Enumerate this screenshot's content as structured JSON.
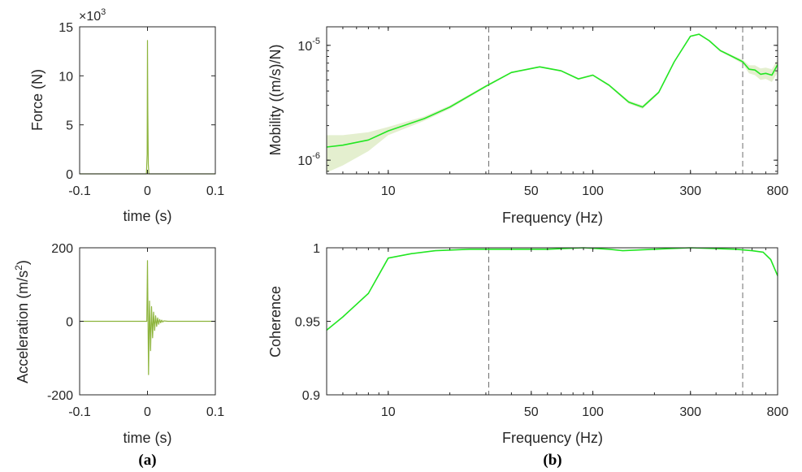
{
  "colors": {
    "force_line": "#8DB43C",
    "accel_line": "#8DB43C",
    "mobility_line": "#22E622",
    "coherence_line": "#22E622",
    "band_fill": "#E4EFCF",
    "marker_line": "#6E6E6E",
    "axis": "#262626"
  },
  "panel_labels": {
    "a": "(a)",
    "b": "(b)"
  },
  "chart_data": [
    {
      "id": "force",
      "type": "line",
      "title": "",
      "xlabel": "time (s)",
      "ylabel": "Force (N)",
      "xlim": [
        -0.1,
        0.1
      ],
      "ylim": [
        0,
        15
      ],
      "xticks": [
        -0.1,
        0,
        0.1
      ],
      "xtick_labels": [
        "-0.1",
        "0",
        "0.1"
      ],
      "yticks": [
        0,
        5,
        10,
        15
      ],
      "ytick_labels": [
        "0",
        "5",
        "10",
        "15"
      ],
      "y_multiplier": "×10",
      "y_multiplier_exp": "3",
      "series": [
        {
          "x": [
            -0.1,
            -0.0015,
            -0.0005,
            0.0,
            0.0005,
            0.0012,
            0.002,
            0.1
          ],
          "y": [
            0,
            0,
            2.0,
            13.6,
            6.5,
            1.0,
            0,
            0
          ]
        }
      ]
    },
    {
      "id": "acceleration",
      "type": "line",
      "title": "",
      "xlabel": "time (s)",
      "ylabel": "Acceleration (m/s",
      "ylabel_sup": "2",
      "ylabel_end": ")",
      "xlim": [
        -0.1,
        0.1
      ],
      "ylim": [
        -200,
        200
      ],
      "xticks": [
        -0.1,
        0,
        0.1
      ],
      "xtick_labels": [
        "-0.1",
        "0",
        "0.1"
      ],
      "yticks": [
        -200,
        0,
        200
      ],
      "ytick_labels": [
        "-200",
        "0",
        "200"
      ],
      "series": [
        {
          "x": [
            -0.1,
            -0.001,
            0.0,
            0.0015,
            0.003,
            0.0045,
            0.006,
            0.0075,
            0.009,
            0.0105,
            0.012,
            0.0135,
            0.015,
            0.0165,
            0.018,
            0.0195,
            0.021,
            0.0225,
            0.024,
            0.03,
            0.1
          ],
          "y": [
            0,
            0,
            165,
            -145,
            55,
            -80,
            40,
            -45,
            25,
            -25,
            15,
            -14,
            9,
            -8,
            5,
            -4,
            3,
            -2,
            1,
            0,
            0
          ]
        }
      ]
    },
    {
      "id": "mobility",
      "type": "line",
      "title": "",
      "xlabel": "Frequency (Hz)",
      "ylabel": "Mobility ((m/s)/N)",
      "xscale": "log",
      "yscale": "log",
      "xlim": [
        5,
        800
      ],
      "ylim": [
        7.6e-07,
        1.45e-05
      ],
      "xticks": [
        10,
        50,
        100,
        300,
        800
      ],
      "xtick_labels": [
        "10",
        "50",
        "100",
        "300",
        "800"
      ],
      "yticks": [
        1e-06,
        1e-05
      ],
      "ytick_base": "10",
      "ytick_exps": [
        "-6",
        "-5"
      ],
      "vlines": [
        31,
        540
      ],
      "series": [
        {
          "x": [
            5,
            6,
            8,
            10,
            15,
            20,
            30,
            40,
            55,
            70,
            85,
            100,
            120,
            150,
            175,
            210,
            250,
            300,
            330,
            370,
            420,
            480,
            540,
            580,
            620,
            660,
            700,
            750,
            800
          ],
          "y": [
            1.3e-06,
            1.35e-06,
            1.5e-06,
            1.8e-06,
            2.3e-06,
            2.9e-06,
            4.4e-06,
            5.8e-06,
            6.5e-06,
            6e-06,
            5.1e-06,
            5.5e-06,
            4.5e-06,
            3.2e-06,
            2.9e-06,
            3.9e-06,
            7.2e-06,
            1.2e-05,
            1.25e-05,
            1.1e-05,
            9e-06,
            8e-06,
            7.2e-06,
            6.2e-06,
            6.1e-06,
            5.6e-06,
            5.7e-06,
            5.5e-06,
            6.8e-06
          ],
          "lower": [
            7.8e-07,
            9e-07,
            1.2e-06,
            1.65e-06,
            2.2e-06,
            2.8e-06,
            4.3e-06,
            5.7e-06,
            6.4e-06,
            5.9e-06,
            5e-06,
            5.4e-06,
            4.4e-06,
            3.1e-06,
            2.8e-06,
            3.8e-06,
            7.1e-06,
            1.18e-05,
            1.23e-05,
            1.08e-05,
            8.8e-06,
            7.8e-06,
            6.9e-06,
            5.7e-06,
            5.5e-06,
            5e-06,
            5.1e-06,
            4.8e-06,
            5.8e-06
          ],
          "upper": [
            1.65e-06,
            1.65e-06,
            1.75e-06,
            1.95e-06,
            2.4e-06,
            3e-06,
            4.5e-06,
            5.9e-06,
            6.6e-06,
            6.1e-06,
            5.2e-06,
            5.6e-06,
            4.6e-06,
            3.3e-06,
            3e-06,
            4e-06,
            7.3e-06,
            1.22e-05,
            1.27e-05,
            1.12e-05,
            9.2e-06,
            8.2e-06,
            7.5e-06,
            6.7e-06,
            6.7e-06,
            6.3e-06,
            6.4e-06,
            6.2e-06,
            7.6e-06
          ]
        }
      ]
    },
    {
      "id": "coherence",
      "type": "line",
      "title": "",
      "xlabel": "Frequency (Hz)",
      "ylabel": "Coherence",
      "xscale": "log",
      "xlim": [
        5,
        800
      ],
      "ylim": [
        0.9,
        1.0
      ],
      "xticks": [
        10,
        50,
        100,
        300,
        800
      ],
      "xtick_labels": [
        "10",
        "50",
        "100",
        "300",
        "800"
      ],
      "yticks": [
        0.9,
        0.95,
        1.0
      ],
      "ytick_labels": [
        "0.9",
        "0.95",
        "1"
      ],
      "vlines": [
        31,
        540
      ],
      "series": [
        {
          "x": [
            5,
            6,
            8,
            10,
            13,
            17,
            25,
            40,
            60,
            90,
            120,
            140,
            200,
            300,
            500,
            600,
            680,
            740,
            800
          ],
          "y": [
            0.944,
            0.953,
            0.969,
            0.993,
            0.996,
            0.998,
            0.999,
            0.999,
            0.999,
            1.0,
            0.999,
            0.998,
            0.999,
            1.0,
            0.999,
            0.998,
            0.997,
            0.992,
            0.981
          ]
        }
      ]
    }
  ]
}
